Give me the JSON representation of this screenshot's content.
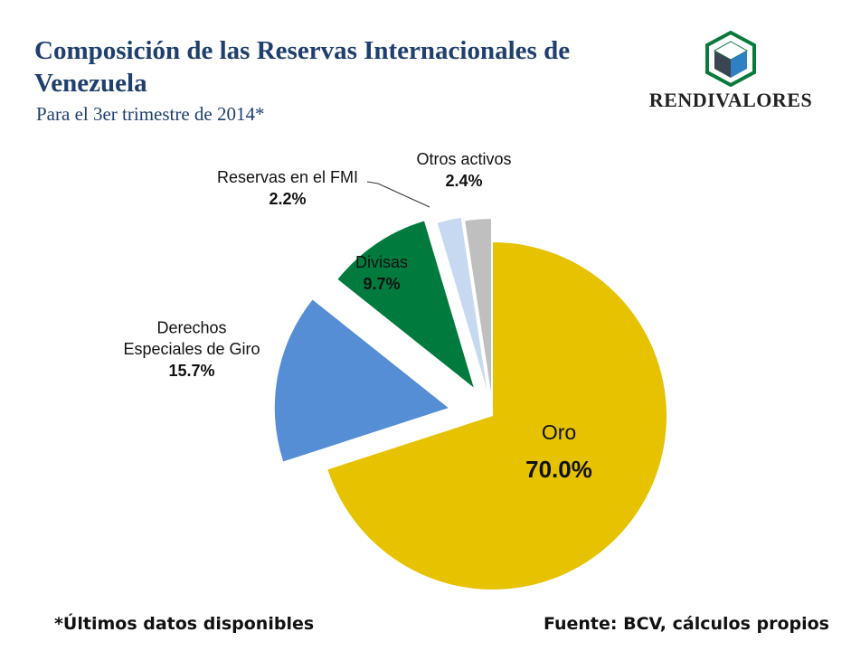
{
  "chart_data": {
    "type": "pie",
    "title": "Composición de las Reservas Internacionales de Venezuela",
    "subtitle": "Para el 3er trimestre de 2014*",
    "categories": [
      "Oro",
      "Derechos Especiales de Giro",
      "Divisas",
      "Reservas en el FMI",
      "Otros activos"
    ],
    "values": [
      70.0,
      15.7,
      9.7,
      2.2,
      2.4
    ],
    "value_labels": [
      "70.0%",
      "15.7%",
      "9.7%",
      "2.2%",
      "2.4%"
    ],
    "label_lines": [
      [
        "Oro"
      ],
      [
        "Derechos",
        "Especiales de Giro"
      ],
      [
        "Divisas"
      ],
      [
        "Reservas en el FMI"
      ],
      [
        "Otros activos"
      ]
    ],
    "colors": [
      "#e6c200",
      "#558ed5",
      "#007a3d",
      "#c6d9f1",
      "#bfbfbf"
    ],
    "exploded": true
  },
  "brand": {
    "name": "RENDIVALORES"
  },
  "footer": {
    "note": "*Últimos datos disponibles",
    "source": "Fuente: BCV, cálculos propios"
  }
}
